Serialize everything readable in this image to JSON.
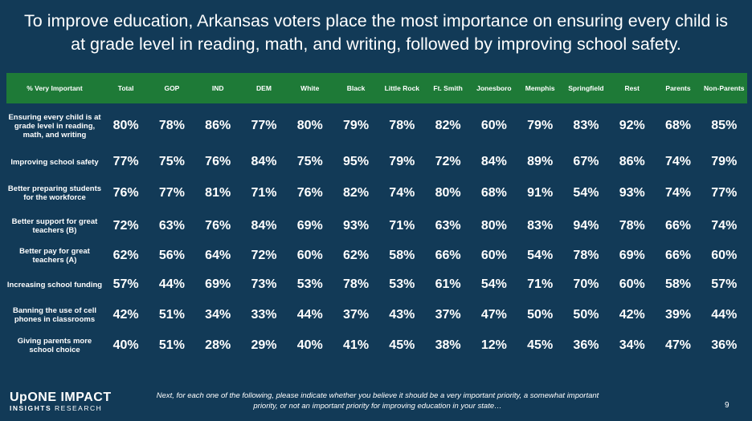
{
  "title": "To improve education, Arkansas voters place the most importance on ensuring every child is at grade level in reading, math, and writing, followed by improving school safety.",
  "columns": [
    "% Very Important",
    "Total",
    "GOP",
    "IND",
    "DEM",
    "White",
    "Black",
    "Little Rock",
    "Ft. Smith",
    "Jonesboro",
    "Memphis",
    "Springfield",
    "Rest",
    "Parents",
    "Non-Parents"
  ],
  "rows": [
    {
      "label": "Ensuring every child is at grade level in reading, math, and writing",
      "values": [
        "80%",
        "78%",
        "86%",
        "77%",
        "80%",
        "79%",
        "78%",
        "82%",
        "60%",
        "79%",
        "83%",
        "92%",
        "68%",
        "85%"
      ]
    },
    {
      "label": "Improving school safety",
      "values": [
        "77%",
        "75%",
        "76%",
        "84%",
        "75%",
        "95%",
        "79%",
        "72%",
        "84%",
        "89%",
        "67%",
        "86%",
        "74%",
        "79%"
      ]
    },
    {
      "label": "Better preparing students for the workforce",
      "values": [
        "76%",
        "77%",
        "81%",
        "71%",
        "76%",
        "82%",
        "74%",
        "80%",
        "68%",
        "91%",
        "54%",
        "93%",
        "74%",
        "77%"
      ]
    },
    {
      "label": "Better support for great teachers (B)",
      "values": [
        "72%",
        "63%",
        "76%",
        "84%",
        "69%",
        "93%",
        "71%",
        "63%",
        "80%",
        "83%",
        "94%",
        "78%",
        "66%",
        "74%"
      ]
    },
    {
      "label": "Better pay for great teachers (A)",
      "values": [
        "62%",
        "56%",
        "64%",
        "72%",
        "60%",
        "62%",
        "58%",
        "66%",
        "60%",
        "54%",
        "78%",
        "69%",
        "66%",
        "60%"
      ]
    },
    {
      "label": "Increasing school funding",
      "values": [
        "57%",
        "44%",
        "69%",
        "73%",
        "53%",
        "78%",
        "53%",
        "61%",
        "54%",
        "71%",
        "70%",
        "60%",
        "58%",
        "57%"
      ]
    },
    {
      "label": "Banning the use of cell phones in classrooms",
      "values": [
        "42%",
        "51%",
        "34%",
        "33%",
        "44%",
        "37%",
        "43%",
        "37%",
        "47%",
        "50%",
        "50%",
        "42%",
        "39%",
        "44%"
      ]
    },
    {
      "label": "Giving parents more school choice",
      "values": [
        "40%",
        "51%",
        "28%",
        "29%",
        "40%",
        "41%",
        "45%",
        "38%",
        "12%",
        "45%",
        "36%",
        "34%",
        "47%",
        "36%"
      ]
    }
  ],
  "logo": {
    "main": "UpONE IMPACT",
    "sub_bold": "INSIGHTS",
    "sub_rest": " RESEARCH"
  },
  "footnote": "Next, for each one of the following, please indicate whether you believe it should be a very important priority, a somewhat important priority, or not an important priority for improving education in your state…",
  "page_number": "9",
  "colors": {
    "background": "#123a57",
    "header_bar": "#1e7a37",
    "text": "#ffffff"
  }
}
